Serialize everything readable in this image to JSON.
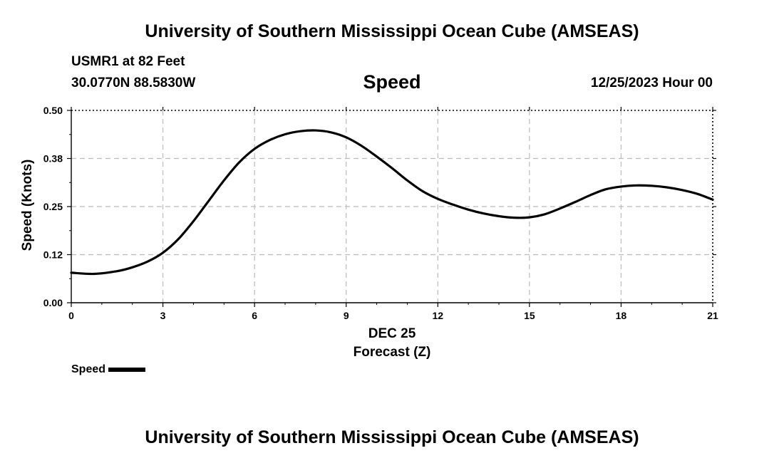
{
  "header": {
    "title": "University of Southern Mississippi Ocean Cube (AMSEAS)",
    "station": "USMR1 at 82 Feet",
    "coords": "30.0770N  88.5830W",
    "variable": "Speed",
    "timestamp": "12/25/2023 Hour 00"
  },
  "footer": {
    "title": "University of Southern Mississippi Ocean Cube (AMSEAS)"
  },
  "legend": {
    "label": "Speed"
  },
  "colors": {
    "line": "#000000",
    "grid": "#bbbbbb",
    "background": "#ffffff"
  },
  "chart_data": {
    "type": "line",
    "title": "Speed",
    "xlabel_date": "DEC 25",
    "xlabel": "Forecast (Z)",
    "ylabel": "Speed (Knots)",
    "xlim": [
      0,
      21
    ],
    "ylim": [
      0,
      0.5
    ],
    "xticks": [
      0,
      3,
      6,
      9,
      12,
      15,
      18,
      21
    ],
    "xtick_labels": [
      "0",
      "3",
      "6",
      "9",
      "12",
      "15",
      "18",
      "21"
    ],
    "yticks": [
      0,
      0.125,
      0.25,
      0.375,
      0.5
    ],
    "ytick_labels": [
      "0.00",
      "0.12",
      "0.25",
      "0.38",
      "0.50"
    ],
    "grid": true,
    "legend_position": "bottom-left",
    "series": [
      {
        "name": "Speed",
        "x": [
          0,
          0.75,
          1.5,
          2,
          2.5,
          3,
          3.5,
          4,
          4.5,
          5,
          5.5,
          6,
          6.5,
          7,
          7.5,
          8,
          8.5,
          9,
          9.5,
          10,
          10.5,
          11,
          11.5,
          12,
          12.5,
          13,
          13.5,
          14,
          14.5,
          15,
          15.5,
          16,
          16.5,
          17,
          17.5,
          18,
          18.5,
          19,
          19.5,
          20,
          20.5,
          21
        ],
        "values": [
          0.078,
          0.075,
          0.082,
          0.092,
          0.107,
          0.13,
          0.165,
          0.212,
          0.265,
          0.318,
          0.365,
          0.4,
          0.423,
          0.438,
          0.446,
          0.448,
          0.443,
          0.43,
          0.408,
          0.38,
          0.35,
          0.318,
          0.29,
          0.27,
          0.255,
          0.242,
          0.232,
          0.225,
          0.221,
          0.222,
          0.23,
          0.245,
          0.262,
          0.28,
          0.295,
          0.302,
          0.305,
          0.304,
          0.3,
          0.293,
          0.283,
          0.268
        ]
      }
    ]
  }
}
